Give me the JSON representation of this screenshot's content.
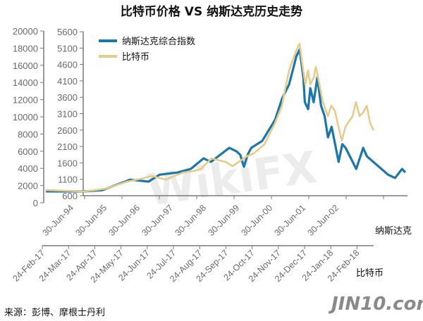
{
  "chart_data": {
    "type": "line",
    "title": "比特币价格 VS 纳斯达克历史走势",
    "legend": [
      "纳斯达克综合指数",
      "比特币"
    ],
    "legend_placement": "top-left",
    "colors": {
      "nasdaq": "#1b76a9",
      "bitcoin": "#e7cb8c"
    },
    "axes": {
      "bitcoin_y": {
        "ticks": [
          "0",
          "2000",
          "4000",
          "6000",
          "8000",
          "10000",
          "12000",
          "14000",
          "16000",
          "18000",
          "20000"
        ],
        "ylim": [
          0,
          20000
        ]
      },
      "nasdaq_y": {
        "ticks": [
          "600",
          "1100",
          "1600",
          "2100",
          "2600",
          "3100",
          "3600",
          "4100",
          "4600",
          "5100",
          "5600"
        ],
        "ylim": [
          600,
          5600
        ]
      },
      "nasdaq_x": {
        "label": "纳斯达克",
        "ticks": [
          "30-Jun-94",
          "30-Jun-95",
          "30-Jun-96",
          "30-Jun-97",
          "30-Jun-98",
          "30-Jun-99",
          "30-Jun-00",
          "30-Jun-01",
          "30-Jun-02"
        ],
        "xlim_years": [
          1993.3,
          2003.1
        ]
      },
      "bitcoin_x": {
        "label": "比特币",
        "ticks": [
          "24-Feb-17",
          "24-Mar-17",
          "24-Apr-17",
          "24-May-17",
          "24-Jun-17",
          "24-Jul-17",
          "24-Aug-17",
          "24-Sep-17",
          "24-Oct-17",
          "24-Nov-17",
          "24-Dec-17",
          "24-Jan-18",
          "24-Feb-18"
        ],
        "xlim_months_since_24feb17": [
          0,
          12.63
        ]
      }
    },
    "series": [
      {
        "name": "纳斯达克综合指数",
        "x_unit": "year",
        "x": [
          1993.3,
          1994.36,
          1994.84,
          1995.6,
          1996.1,
          1996.4,
          1996.9,
          1997.25,
          1997.6,
          1997.8,
          1998.3,
          1998.5,
          1998.6,
          1998.7,
          1998.8,
          1998.9,
          1999.2,
          1999.55,
          1999.74,
          1999.93,
          2000.13,
          2000.22,
          2000.32,
          2000.36,
          2000.45,
          2000.51,
          2000.6,
          2000.7,
          2000.8,
          2000.9,
          2000.99,
          2001.09,
          2001.28,
          2001.38,
          2001.47,
          2001.76,
          2001.95,
          2002.05,
          2002.34,
          2002.63,
          2002.82,
          2003.01,
          2003.1
        ],
        "values": [
          730,
          730,
          770,
          1090,
          1030,
          1240,
          1310,
          1415,
          1740,
          1630,
          2060,
          1950,
          1845,
          1480,
          1845,
          2060,
          2270,
          2920,
          3560,
          3990,
          4850,
          5060,
          4200,
          3450,
          3240,
          3880,
          3450,
          4200,
          3350,
          3025,
          2380,
          2700,
          1630,
          2170,
          2060,
          1415,
          2060,
          1800,
          1520,
          1240,
          1140,
          1415,
          1310
        ]
      },
      {
        "name": "比特币",
        "x_unit": "months since 24-Feb-17",
        "x": [
          0.13,
          1.61,
          2.42,
          3.23,
          3.76,
          4.17,
          4.7,
          5.38,
          5.78,
          6.05,
          6.45,
          6.99,
          7.26,
          7.8,
          8.06,
          8.47,
          8.87,
          9.14,
          9.27,
          9.41,
          9.68,
          9.81,
          9.95,
          10.03,
          10.13,
          10.22,
          10.35,
          10.43,
          10.54,
          10.7,
          10.89,
          11.02,
          11.16,
          11.29,
          11.42,
          11.56,
          11.83,
          11.96,
          12.1,
          12.23,
          12.37,
          12.5,
          12.63
        ],
        "values": [
          1480,
          1310,
          1640,
          2460,
          2790,
          3115,
          2700,
          3525,
          3690,
          3935,
          5165,
          4755,
          4260,
          5410,
          5740,
          6800,
          9260,
          11310,
          13360,
          15410,
          17700,
          18530,
          15410,
          13770,
          15410,
          13770,
          14590,
          15820,
          14180,
          11720,
          10080,
          11310,
          10660,
          8850,
          7210,
          8850,
          10080,
          11720,
          10080,
          10490,
          11310,
          9260,
          8440
        ]
      }
    ]
  },
  "source": "来源：彭博、摩根士丹利",
  "watermark": "WikiFX",
  "logo": "JIN10.com"
}
